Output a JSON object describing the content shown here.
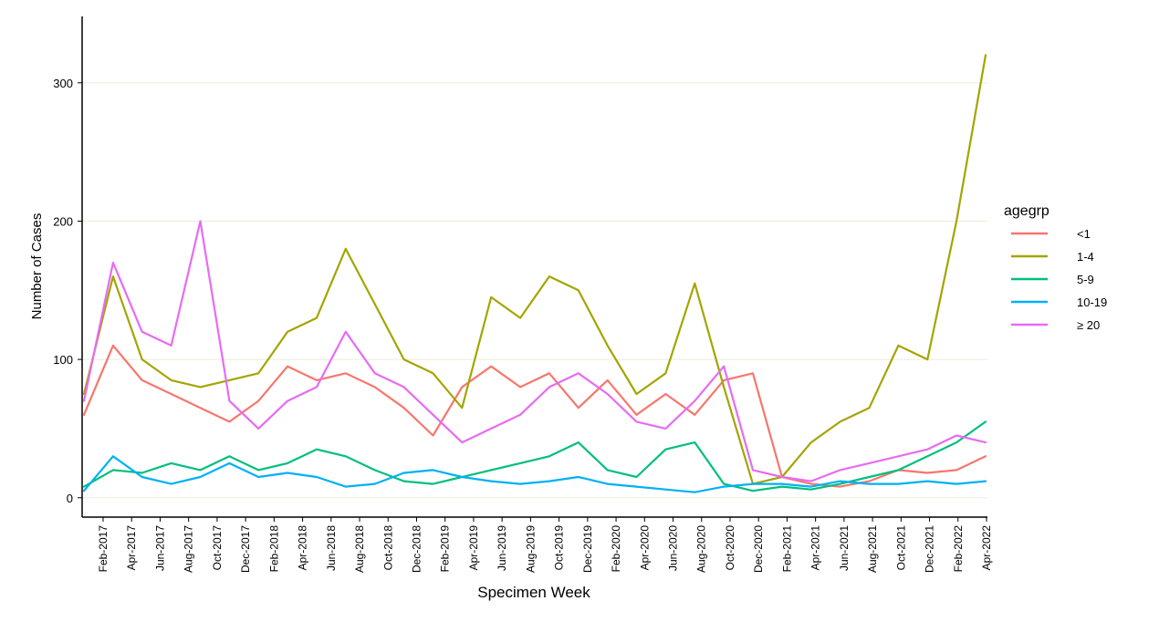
{
  "chart_data": {
    "type": "line",
    "xlabel": "Specimen Week",
    "ylabel": "Number of Cases",
    "x_ticks": [
      "Feb-2017",
      "Apr-2017",
      "Jun-2017",
      "Aug-2017",
      "Oct-2017",
      "Dec-2017",
      "Feb-2018",
      "Apr-2018",
      "Jun-2018",
      "Aug-2018",
      "Oct-2018",
      "Dec-2018",
      "Feb-2019",
      "Apr-2019",
      "Jun-2019",
      "Aug-2019",
      "Oct-2019",
      "Dec-2019",
      "Feb-2020",
      "Apr-2020",
      "Jun-2020",
      "Aug-2020",
      "Oct-2020",
      "Dec-2020",
      "Feb-2021",
      "Apr-2021",
      "Jun-2021",
      "Aug-2021",
      "Oct-2021",
      "Dec-2021",
      "Feb-2022",
      "Apr-2022"
    ],
    "y_ticks": [
      0,
      100,
      200,
      300
    ],
    "ylim": [
      -14,
      348
    ],
    "grid": "horizontal major lines only",
    "legend": {
      "title": "agegrp",
      "position": "right"
    },
    "x": [
      "Jan-2017",
      "Mar-2017",
      "May-2017",
      "Jul-2017",
      "Sep-2017",
      "Nov-2017",
      "Jan-2018",
      "Mar-2018",
      "May-2018",
      "Jul-2018",
      "Sep-2018",
      "Nov-2018",
      "Jan-2019",
      "Mar-2019",
      "May-2019",
      "Jul-2019",
      "Sep-2019",
      "Nov-2019",
      "Jan-2020",
      "Mar-2020",
      "May-2020",
      "Jul-2020",
      "Sep-2020",
      "Nov-2020",
      "Jan-2021",
      "Mar-2021",
      "May-2021",
      "Jul-2021",
      "Sep-2021",
      "Nov-2021",
      "Jan-2022",
      "Mar-2022"
    ],
    "series": [
      {
        "name": "<1",
        "color": "#F8766D",
        "values": [
          60,
          110,
          85,
          75,
          65,
          55,
          70,
          95,
          85,
          90,
          80,
          65,
          45,
          80,
          95,
          80,
          90,
          65,
          85,
          60,
          75,
          60,
          85,
          90,
          15,
          10,
          8,
          12,
          20,
          18,
          20,
          30
        ]
      },
      {
        "name": "1-4",
        "color": "#A3A500",
        "values": [
          75,
          160,
          100,
          85,
          80,
          85,
          90,
          120,
          130,
          180,
          140,
          100,
          90,
          65,
          145,
          130,
          160,
          150,
          110,
          75,
          90,
          155,
          80,
          10,
          15,
          40,
          55,
          65,
          110,
          100,
          200,
          320
        ]
      },
      {
        "name": "5-9",
        "color": "#00BF7D",
        "values": [
          8,
          20,
          18,
          25,
          20,
          30,
          20,
          25,
          35,
          30,
          20,
          12,
          10,
          15,
          20,
          25,
          30,
          40,
          20,
          15,
          35,
          40,
          10,
          5,
          8,
          6,
          10,
          15,
          20,
          30,
          40,
          55
        ]
      },
      {
        "name": "10-19",
        "color": "#00B0F6",
        "values": [
          5,
          30,
          15,
          10,
          15,
          25,
          15,
          18,
          15,
          8,
          10,
          18,
          20,
          15,
          12,
          10,
          12,
          15,
          10,
          8,
          6,
          4,
          8,
          10,
          10,
          8,
          12,
          10,
          10,
          12,
          10,
          12
        ]
      },
      {
        "name": "≥ 20",
        "color": "#E76BF3",
        "values": [
          70,
          170,
          120,
          110,
          200,
          70,
          50,
          70,
          80,
          120,
          90,
          80,
          60,
          40,
          50,
          60,
          80,
          90,
          75,
          55,
          50,
          70,
          95,
          20,
          15,
          12,
          20,
          25,
          30,
          35,
          45,
          40
        ]
      }
    ]
  }
}
